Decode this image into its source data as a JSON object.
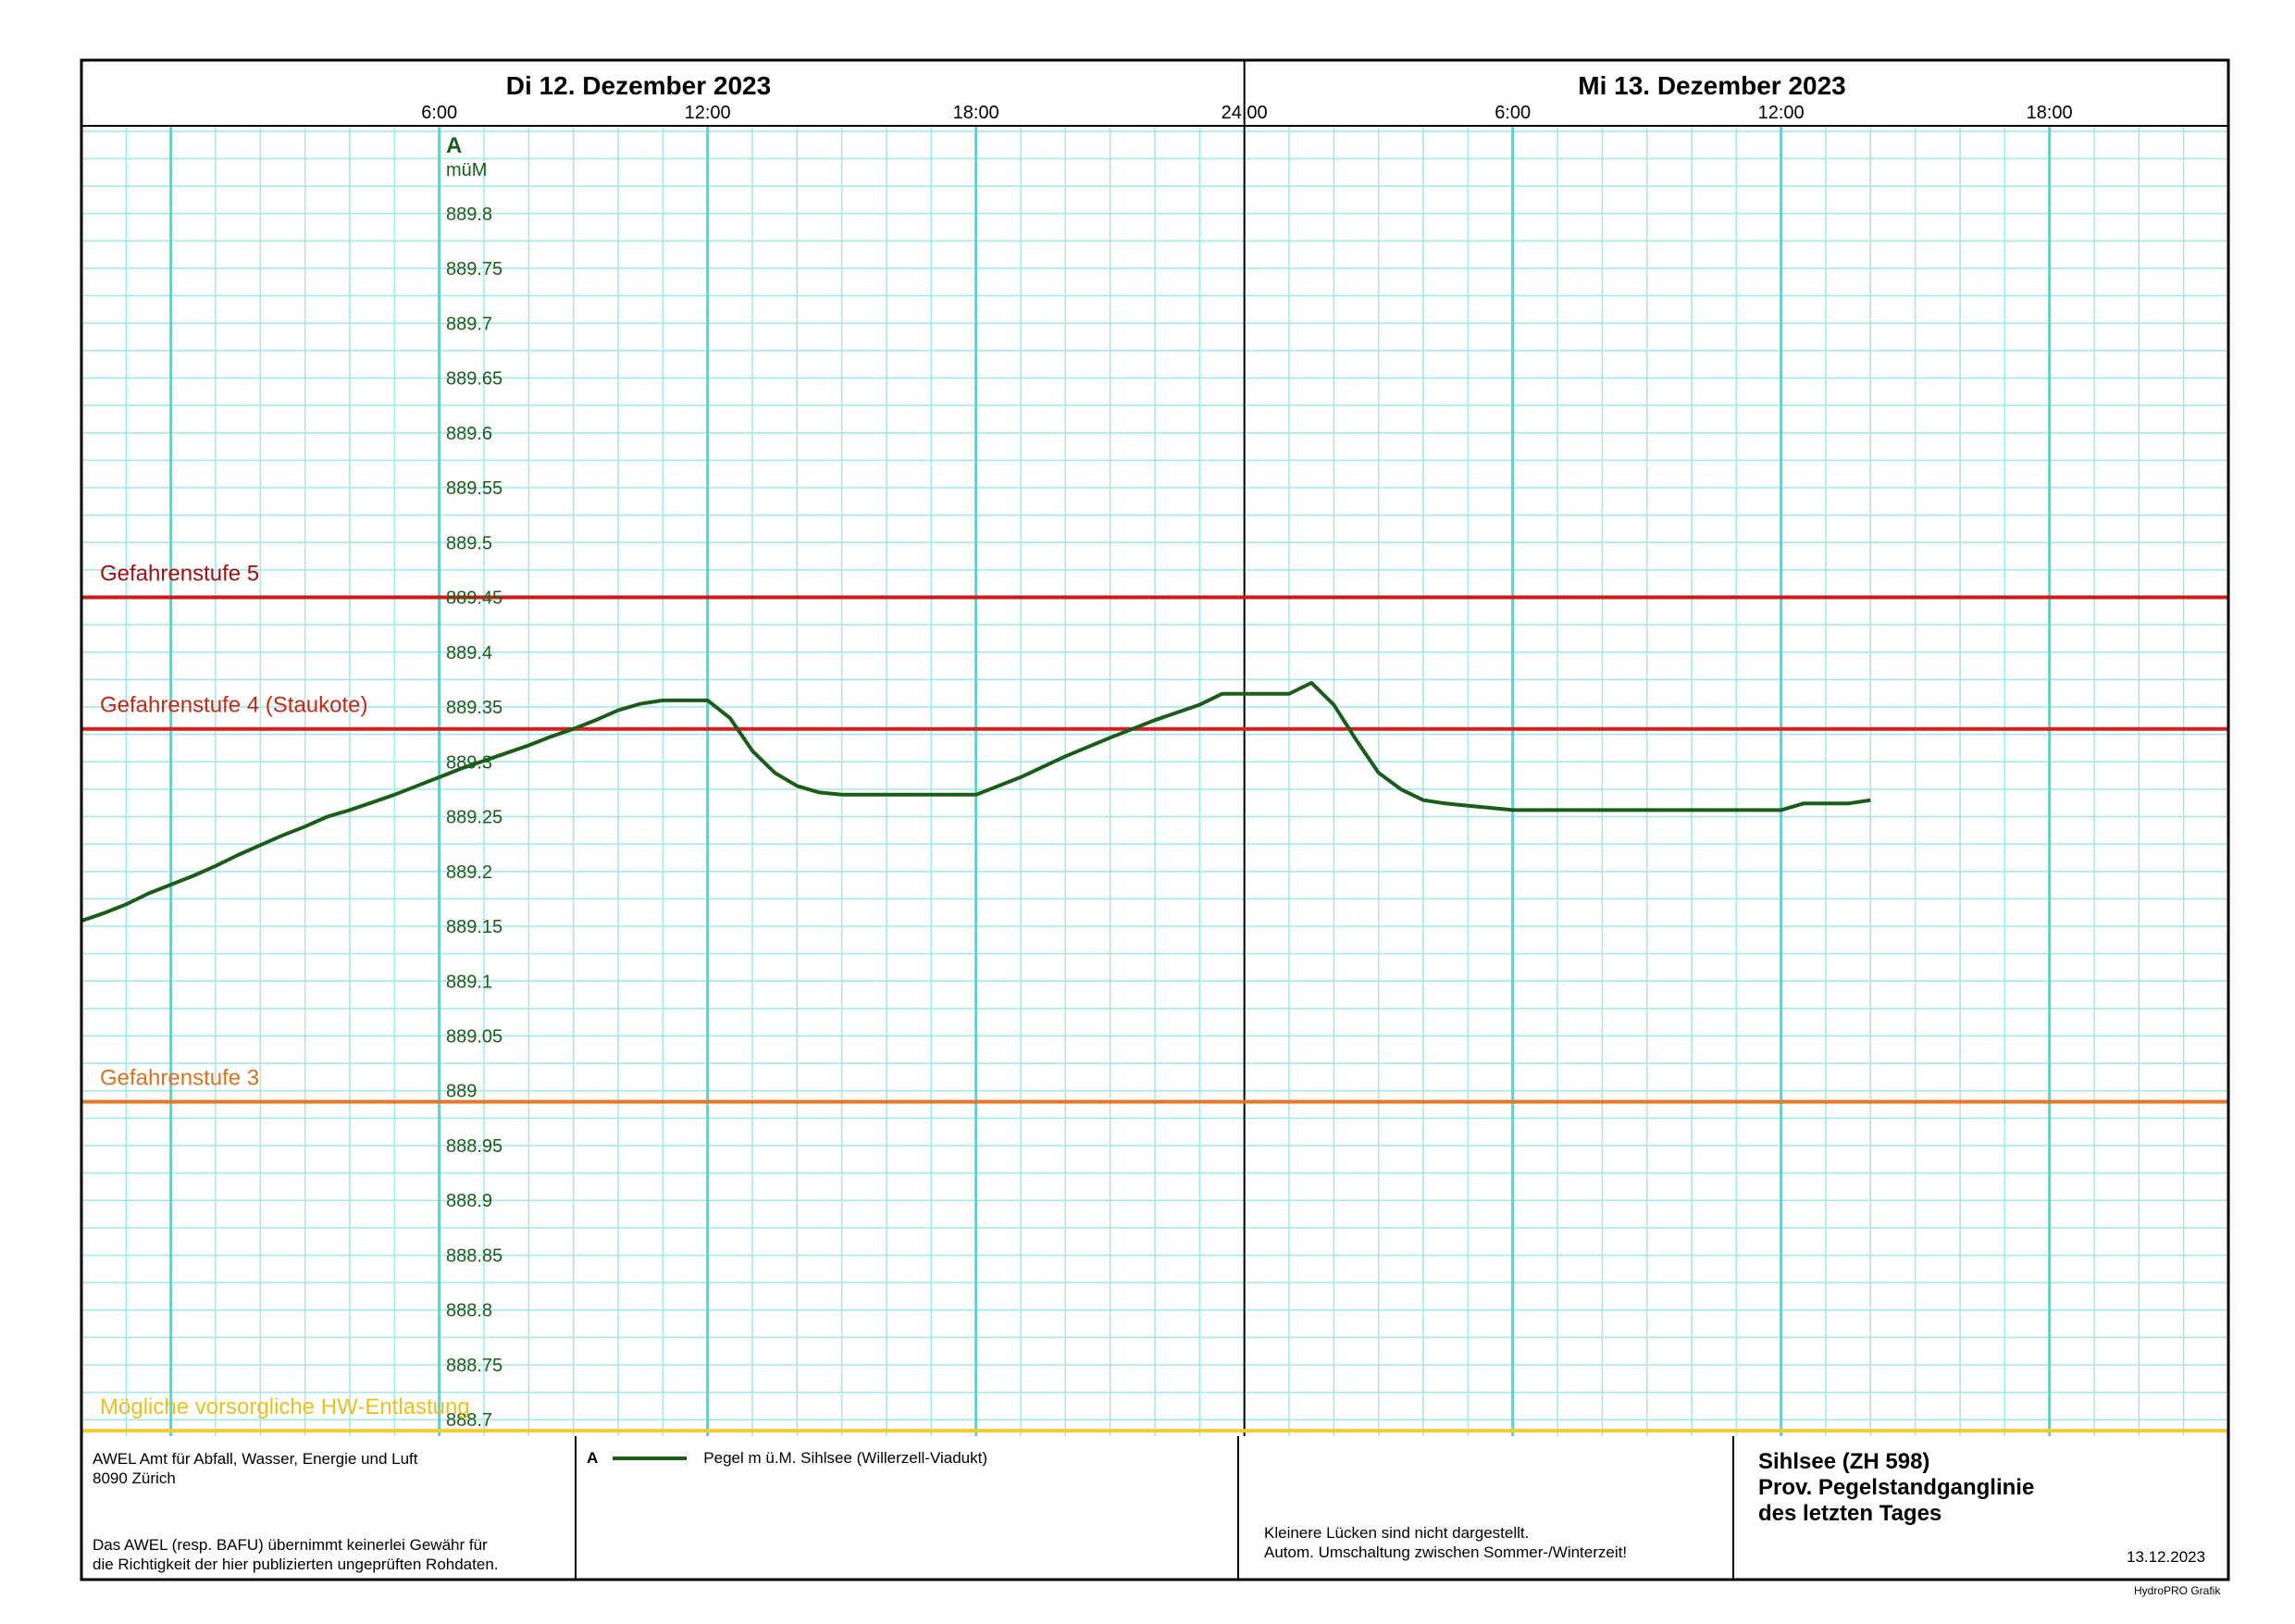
{
  "chart_data": {
    "type": "line",
    "title": "",
    "days": [
      {
        "label": "Di  12. Dezember  2023"
      },
      {
        "label": "Mi  13. Dezember  2023"
      }
    ],
    "hour_ticks": [
      {
        "hour": 6,
        "label": "6:00"
      },
      {
        "hour": 12,
        "label": "12:00"
      },
      {
        "hour": 18,
        "label": "18:00"
      },
      {
        "hour": 24,
        "label": "24:00"
      },
      {
        "hour": 30,
        "label": "6:00"
      },
      {
        "hour": 36,
        "label": "12:00"
      },
      {
        "hour": 42,
        "label": "18:00"
      }
    ],
    "xlim": [
      -2,
      46
    ],
    "ylim": [
      888.685,
      889.88
    ],
    "y_axis_letter": "A",
    "ylabel": "müM",
    "y_ticks": [
      {
        "value": 889.8,
        "label": "889.8"
      },
      {
        "value": 889.75,
        "label": "889.75"
      },
      {
        "value": 889.7,
        "label": "889.7"
      },
      {
        "value": 889.65,
        "label": "889.65"
      },
      {
        "value": 889.6,
        "label": "889.6"
      },
      {
        "value": 889.55,
        "label": "889.55"
      },
      {
        "value": 889.5,
        "label": "889.5"
      },
      {
        "value": 889.45,
        "label": "889.45"
      },
      {
        "value": 889.4,
        "label": "889.4"
      },
      {
        "value": 889.35,
        "label": "889.35"
      },
      {
        "value": 889.3,
        "label": "889.3"
      },
      {
        "value": 889.25,
        "label": "889.25"
      },
      {
        "value": 889.2,
        "label": "889.2"
      },
      {
        "value": 889.15,
        "label": "889.15"
      },
      {
        "value": 889.1,
        "label": "889.1"
      },
      {
        "value": 889.05,
        "label": "889.05"
      },
      {
        "value": 889,
        "label": "889"
      },
      {
        "value": 888.95,
        "label": "888.95"
      },
      {
        "value": 888.9,
        "label": "888.9"
      },
      {
        "value": 888.85,
        "label": "888.85"
      },
      {
        "value": 888.8,
        "label": "888.8"
      },
      {
        "value": 888.75,
        "label": "888.75"
      },
      {
        "value": 888.7,
        "label": "888.7"
      }
    ],
    "grid": true,
    "levels": [
      {
        "name": "Gefahrenstufe 5",
        "value": 889.45,
        "color": "#cc1a1a",
        "text_color": "#a01010"
      },
      {
        "name": "Gefahrenstufe 4 (Staukote)",
        "value": 889.33,
        "color": "#d42020",
        "text_color": "#c02818"
      },
      {
        "name": "Gefahrenstufe 3",
        "value": 888.99,
        "color": "#e8762a",
        "text_color": "#d8721e"
      },
      {
        "name": "Mögliche vorsorgliche  HW-Entlastung",
        "value": 888.69,
        "color": "#f0cc30",
        "text_color": "#e8c020"
      }
    ],
    "series": [
      {
        "name": "Pegel m ü.M. Sihlsee (Willerzell-Viadukt)",
        "color": "#1a5c1a",
        "x": [
          -2,
          -1.5,
          -1,
          -0.5,
          0,
          0.5,
          1,
          1.5,
          2,
          2.5,
          3,
          3.5,
          4,
          4.5,
          5,
          5.5,
          6,
          6.5,
          7,
          7.5,
          8,
          8.5,
          9,
          9.5,
          10,
          10.5,
          11,
          11.5,
          12,
          12.5,
          13,
          13.5,
          14,
          14.5,
          15,
          15.5,
          16,
          16.5,
          17,
          17.5,
          18,
          19,
          20,
          21,
          22,
          22.5,
          23,
          23.5,
          24,
          24.5,
          25,
          25.5,
          26,
          26.5,
          27,
          27.5,
          28,
          28.5,
          29,
          29.5,
          30,
          30.5,
          31,
          31.5,
          32,
          33,
          34,
          35,
          36,
          36.5,
          37,
          37.5,
          38
        ],
        "values": [
          889.155,
          889.162,
          889.17,
          889.18,
          889.188,
          889.196,
          889.205,
          889.215,
          889.224,
          889.233,
          889.241,
          889.25,
          889.256,
          889.263,
          889.27,
          889.278,
          889.286,
          889.294,
          889.301,
          889.308,
          889.315,
          889.323,
          889.33,
          889.338,
          889.347,
          889.353,
          889.356,
          889.356,
          889.356,
          889.34,
          889.31,
          889.29,
          889.278,
          889.272,
          889.27,
          889.27,
          889.27,
          889.27,
          889.27,
          889.27,
          889.27,
          889.286,
          889.305,
          889.322,
          889.338,
          889.345,
          889.352,
          889.362,
          889.362,
          889.362,
          889.362,
          889.372,
          889.352,
          889.32,
          889.29,
          889.275,
          889.265,
          889.262,
          889.26,
          889.258,
          889.256,
          889.256,
          889.256,
          889.256,
          889.256,
          889.256,
          889.256,
          889.256,
          889.256,
          889.262,
          889.262,
          889.262,
          889.265
        ]
      }
    ]
  },
  "footer": {
    "org_line1": "AWEL  Amt für Abfall, Wasser, Energie und Luft",
    "org_line2": "8090 Zürich",
    "disclaimer_line1": "Das AWEL (resp. BAFU) übernimmt keinerlei Gewähr für",
    "disclaimer_line2": "die Richtigkeit der hier publizierten ungeprüften Rohdaten.",
    "legend_letter": "A",
    "legend_label": "Pegel m ü.M. Sihlsee (Willerzell-Viadukt)",
    "note_line1": "Kleinere Lücken sind nicht dargestellt.",
    "note_line2": "Autom. Umschaltung zwischen Sommer-/Winterzeit!",
    "station_line1": "Sihlsee (ZH 598)",
    "station_line2": "Prov. Pegelstandganglinie",
    "station_line3": "des letzten Tages",
    "date": "13.12.2023",
    "credit": "HydroPRO Grafik"
  }
}
